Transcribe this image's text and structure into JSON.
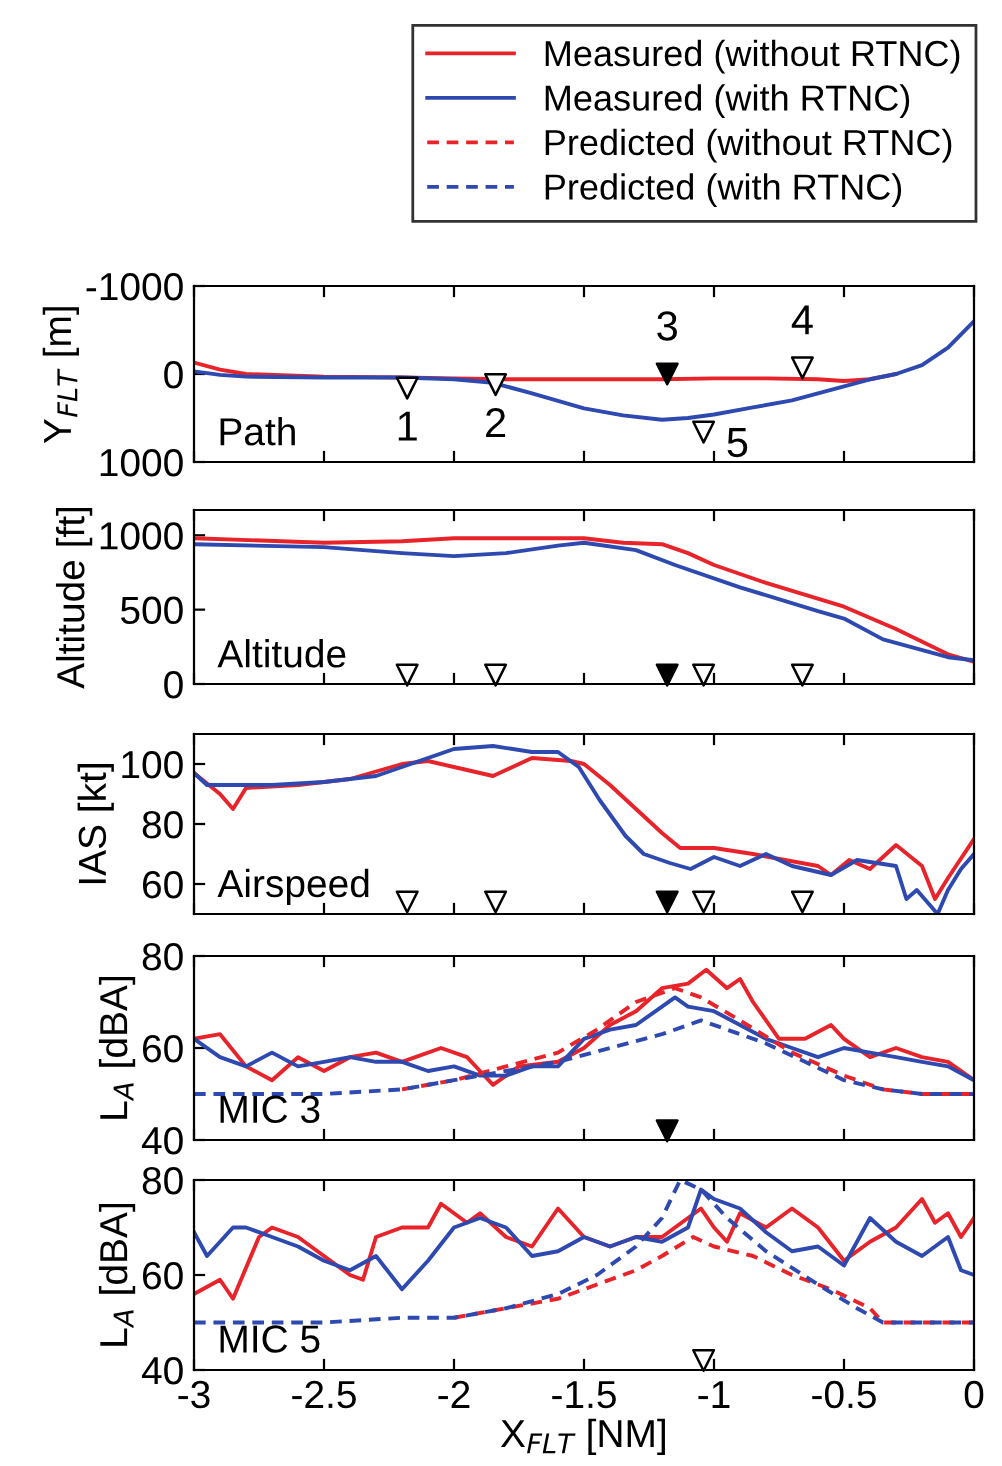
{
  "chart_data": [
    {
      "type": "line",
      "ylabel": "Y$_{FLT}$ [m]",
      "xlim": [
        -3,
        0
      ],
      "xticks": [
        -3,
        -2.5,
        -2,
        -1.5,
        -1,
        -0.5,
        0
      ],
      "ylim": [
        1000,
        -1000
      ],
      "yticks": [
        -1000,
        0,
        1000
      ],
      "tick_labels": "y",
      "grid": false,
      "annotations": [
        "Path",
        {
          "text": "1",
          "x": -2.18,
          "y": 160
        },
        {
          "text": "2",
          "x": -1.84,
          "y": 120
        },
        {
          "text": "3",
          "x": -1.18,
          "y": 0
        },
        {
          "text": "4",
          "x": -0.66,
          "y": -70
        },
        {
          "text": "5",
          "x": -1.04,
          "y": 660
        }
      ],
      "series": [
        {
          "color": "#e8232a",
          "line_style": "solid",
          "x": [
            -3,
            -2.9,
            -2.8,
            -2.5,
            -2.2,
            -2,
            -1.8,
            -1.5,
            -1.2,
            -1,
            -0.8,
            -0.6,
            -0.5,
            -0.4,
            -0.3
          ],
          "values": [
            -130,
            -50,
            0,
            30,
            40,
            50,
            60,
            60,
            60,
            50,
            50,
            60,
            80,
            60,
            0
          ]
        },
        {
          "color": "#2e49b0",
          "line_style": "solid",
          "x": [
            -3,
            -2.9,
            -2.8,
            -2.5,
            -2.2,
            -2,
            -1.85,
            -1.7,
            -1.5,
            -1.35,
            -1.2,
            -1.1,
            -1,
            -0.85,
            -0.7,
            -0.55,
            -0.4,
            -0.3,
            -0.2,
            -0.1,
            0
          ],
          "values": [
            -30,
            10,
            30,
            40,
            40,
            60,
            100,
            220,
            390,
            470,
            520,
            500,
            460,
            380,
            300,
            180,
            60,
            0,
            -100,
            -300,
            -600
          ]
        },
        {
          "type": "scatter",
          "marker": "triangle",
          "x": [
            -2.18,
            -1.84,
            -1.18,
            -0.66,
            -1.04
          ],
          "values": [
            160,
            120,
            0,
            -70,
            660
          ],
          "colors": [
            "#ffffff",
            "#ffffff",
            "#000000",
            "#ffffff",
            "#ffffff"
          ]
        }
      ]
    },
    {
      "type": "line",
      "ylabel": "Altitude [ft]",
      "xlim": [
        -3,
        0
      ],
      "xticks": [
        -3,
        -2.5,
        -2,
        -1.5,
        -1,
        -0.5,
        0
      ],
      "ylim": [
        0,
        1170
      ],
      "yticks": [
        0,
        500,
        1000
      ],
      "tick_labels": "y",
      "grid": false,
      "annotations": [
        "Altitude"
      ],
      "series": [
        {
          "color": "#e8232a",
          "line_style": "solid",
          "x": [
            -3,
            -2.5,
            -2.2,
            -2,
            -1.5,
            -1.35,
            -1.2,
            -1.1,
            -1,
            -0.8,
            -0.5,
            -0.3,
            -0.1,
            0
          ],
          "values": [
            980,
            950,
            960,
            980,
            980,
            950,
            940,
            880,
            800,
            680,
            520,
            370,
            200,
            150
          ]
        },
        {
          "color": "#2e49b0",
          "line_style": "solid",
          "x": [
            -3,
            -2.5,
            -2.2,
            -2,
            -1.8,
            -1.6,
            -1.5,
            -1.3,
            -1.15,
            -0.9,
            -0.6,
            -0.5,
            -0.35,
            -0.1,
            0
          ],
          "values": [
            940,
            920,
            880,
            860,
            880,
            930,
            950,
            900,
            800,
            650,
            490,
            440,
            300,
            180,
            160
          ]
        },
        {
          "type": "scatter",
          "marker": "triangle",
          "x": [
            -2.18,
            -1.84,
            -1.18,
            -1.04,
            -0.66
          ],
          "values": [
            60,
            60,
            60,
            60,
            60
          ],
          "colors": [
            "#ffffff",
            "#ffffff",
            "#000000",
            "#ffffff",
            "#ffffff"
          ]
        }
      ]
    },
    {
      "type": "line",
      "ylabel": "IAS [kt]",
      "xlim": [
        -3,
        0
      ],
      "xticks": [
        -3,
        -2.5,
        -2,
        -1.5,
        -1,
        -0.5,
        0
      ],
      "ylim": [
        50,
        110
      ],
      "yticks": [
        60,
        80,
        100
      ],
      "tick_labels": "y",
      "grid": false,
      "annotations": [
        "Airspeed"
      ],
      "series": [
        {
          "color": "#e8232a",
          "line_style": "solid",
          "x": [
            -3,
            -2.9,
            -2.85,
            -2.8,
            -2.6,
            -2.4,
            -2.2,
            -2.1,
            -1.95,
            -1.85,
            -1.7,
            -1.55,
            -1.5,
            -1.4,
            -1.3,
            -1.2,
            -1.13,
            -1,
            -0.85,
            -0.6,
            -0.55,
            -0.48,
            -0.4,
            -0.3,
            -0.2,
            -0.15,
            -0.1,
            0
          ],
          "values": [
            97,
            90,
            85,
            92,
            93,
            95,
            100,
            101,
            98,
            96,
            102,
            101,
            100,
            93,
            85,
            77,
            72,
            72,
            70,
            66,
            63,
            68,
            65,
            73,
            66,
            55,
            62,
            75
          ]
        },
        {
          "color": "#2e49b0",
          "line_style": "solid",
          "x": [
            -3,
            -2.95,
            -2.7,
            -2.5,
            -2.3,
            -2.2,
            -2,
            -1.85,
            -1.7,
            -1.6,
            -1.52,
            -1.44,
            -1.34,
            -1.27,
            -1.17,
            -1.09,
            -1,
            -0.9,
            -0.8,
            -0.7,
            -0.55,
            -0.45,
            -0.3,
            -0.26,
            -0.22,
            -0.14,
            -0.1,
            -0.05,
            0
          ],
          "values": [
            97,
            93,
            93,
            94,
            96,
            99,
            105,
            106,
            104,
            104,
            99,
            88,
            76,
            70,
            67,
            65,
            69,
            66,
            70,
            66,
            63,
            68,
            66,
            55,
            58,
            50,
            58,
            65,
            70
          ]
        },
        {
          "type": "scatter",
          "marker": "triangle",
          "x": [
            -2.18,
            -1.84,
            -1.18,
            -1.04,
            -0.66
          ],
          "values": [
            54,
            54,
            54,
            54,
            54
          ],
          "colors": [
            "#ffffff",
            "#ffffff",
            "#000000",
            "#ffffff",
            "#ffffff"
          ]
        }
      ]
    },
    {
      "type": "line",
      "ylabel": "L$_{A}$ [dBA]",
      "xlim": [
        -3,
        0
      ],
      "xticks": [
        -3,
        -2.5,
        -2,
        -1.5,
        -1,
        -0.5,
        0
      ],
      "ylim": [
        40,
        80
      ],
      "yticks": [
        40,
        60,
        80
      ],
      "tick_labels": "y",
      "grid": false,
      "legend": "top",
      "annotations": [
        "MIC 3"
      ],
      "series": [
        {
          "name": "Measured (without RTNC)",
          "color": "#e8232a",
          "line_style": "solid",
          "x": [
            -3,
            -2.9,
            -2.8,
            -2.7,
            -2.6,
            -2.5,
            -2.4,
            -2.3,
            -2.2,
            -2.05,
            -1.95,
            -1.9,
            -1.85,
            -1.75,
            -1.6,
            -1.5,
            -1.4,
            -1.3,
            -1.2,
            -1.1,
            -1.03,
            -0.95,
            -0.9,
            -0.85,
            -0.75,
            -0.65,
            -0.55,
            -0.5,
            -0.4,
            -0.3,
            -0.2,
            -0.1,
            0
          ],
          "values": [
            62,
            63,
            56,
            53,
            58,
            55,
            58,
            59,
            57,
            60,
            58,
            55,
            52,
            56,
            57,
            60,
            65,
            68,
            73,
            74,
            77,
            73,
            75,
            70,
            62,
            62,
            65,
            62,
            58,
            60,
            58,
            57,
            53
          ]
        },
        {
          "name": "Measured (with RTNC)",
          "color": "#2e49b0",
          "line_style": "solid",
          "x": [
            -3,
            -2.9,
            -2.8,
            -2.7,
            -2.6,
            -2.5,
            -2.4,
            -2.3,
            -2.2,
            -2.1,
            -2,
            -1.9,
            -1.8,
            -1.7,
            -1.6,
            -1.5,
            -1.4,
            -1.3,
            -1.2,
            -1.15,
            -1.1,
            -1,
            -0.9,
            -0.8,
            -0.7,
            -0.6,
            -0.5,
            -0.4,
            -0.3,
            -0.2,
            -0.1,
            0
          ],
          "values": [
            62,
            58,
            56,
            59,
            56,
            57,
            58,
            57,
            57,
            55,
            56,
            54,
            54,
            56,
            56,
            62,
            64,
            65,
            69,
            71,
            69,
            68,
            65,
            62,
            60,
            58,
            60,
            59,
            58,
            57,
            56,
            53
          ]
        },
        {
          "name": "Predicted (without RTNC)",
          "color": "#e8232a",
          "line_style": "dashed",
          "x": [
            -2.2,
            -2,
            -1.8,
            -1.6,
            -1.45,
            -1.3,
            -1.15,
            -1.05,
            -0.9,
            -0.7,
            -0.5,
            -0.35,
            -0.2,
            0
          ],
          "values": [
            51,
            53,
            56,
            59,
            64,
            70,
            73,
            71,
            66,
            59,
            54,
            51,
            50,
            50
          ]
        },
        {
          "name": "Predicted (with RTNC)",
          "color": "#2e49b0",
          "line_style": "dashed",
          "x": [
            -3,
            -2.5,
            -2.2,
            -2,
            -1.8,
            -1.6,
            -1.4,
            -1.2,
            -1.05,
            -0.95,
            -0.8,
            -0.65,
            -0.5,
            -0.35,
            -0.2,
            0
          ],
          "values": [
            50,
            50,
            51,
            53,
            55,
            57,
            60,
            63,
            66,
            64,
            61,
            57,
            53,
            51,
            50,
            50
          ]
        },
        {
          "type": "scatter",
          "marker": "triangle",
          "x": [
            -1.18
          ],
          "values": [
            42
          ],
          "colors": [
            "#000000"
          ]
        }
      ]
    },
    {
      "type": "line",
      "ylabel": "L$_{A}$ [dBA]",
      "xlabel": "X$_{FLT}$ [NM]",
      "xlim": [
        -3,
        0
      ],
      "xticks": [
        -3,
        -2.5,
        -2,
        -1.5,
        -1,
        -0.5,
        0
      ],
      "ylim": [
        40,
        80
      ],
      "yticks": [
        40,
        60,
        80
      ],
      "grid": false,
      "annotations": [
        "MIC 5"
      ],
      "series": [
        {
          "color": "#e8232a",
          "line_style": "solid",
          "x": [
            -3,
            -2.9,
            -2.85,
            -2.75,
            -2.7,
            -2.6,
            -2.5,
            -2.4,
            -2.35,
            -2.3,
            -2.2,
            -2.1,
            -2.05,
            -1.95,
            -1.9,
            -1.8,
            -1.7,
            -1.6,
            -1.5,
            -1.4,
            -1.3,
            -1.2,
            -1.1,
            -1.05,
            -1,
            -0.95,
            -0.9,
            -0.8,
            -0.7,
            -0.6,
            -0.5,
            -0.4,
            -0.3,
            -0.2,
            -0.15,
            -0.1,
            -0.05,
            0
          ],
          "values": [
            56,
            59,
            55,
            68,
            70,
            68,
            64,
            60,
            59,
            68,
            70,
            70,
            75,
            71,
            73,
            68,
            66,
            74,
            68,
            66,
            68,
            68,
            72,
            74,
            70,
            67,
            73,
            70,
            74,
            70,
            63,
            67,
            70,
            76,
            71,
            73,
            68,
            72
          ]
        },
        {
          "color": "#2e49b0",
          "line_style": "solid",
          "x": [
            -3,
            -2.95,
            -2.85,
            -2.8,
            -2.7,
            -2.6,
            -2.5,
            -2.4,
            -2.3,
            -2.2,
            -2.1,
            -2,
            -1.9,
            -1.8,
            -1.7,
            -1.6,
            -1.5,
            -1.4,
            -1.3,
            -1.2,
            -1.1,
            -1.05,
            -1,
            -0.9,
            -0.8,
            -0.7,
            -0.6,
            -0.5,
            -0.4,
            -0.3,
            -0.2,
            -0.1,
            -0.05,
            0
          ],
          "values": [
            69,
            64,
            70,
            70,
            68,
            66,
            63,
            61,
            64,
            57,
            63,
            70,
            72,
            70,
            64,
            65,
            68,
            66,
            68,
            67,
            70,
            78,
            76,
            74,
            69,
            65,
            66,
            62,
            72,
            67,
            64,
            68,
            61,
            60
          ]
        },
        {
          "color": "#e8232a",
          "line_style": "dashed",
          "x": [
            -2,
            -1.8,
            -1.6,
            -1.45,
            -1.3,
            -1.2,
            -1.08,
            -1,
            -0.85,
            -0.7,
            -0.55,
            -0.4,
            -0.35,
            0
          ],
          "values": [
            51,
            53,
            55,
            58,
            61,
            64,
            68,
            66,
            64,
            60,
            57,
            53,
            50,
            50
          ]
        },
        {
          "color": "#2e49b0",
          "line_style": "dashed",
          "x": [
            -3,
            -2.5,
            -2.2,
            -2,
            -1.8,
            -1.6,
            -1.45,
            -1.3,
            -1.2,
            -1.13,
            -1.05,
            -0.95,
            -0.8,
            -0.6,
            -0.45,
            -0.35,
            0
          ],
          "values": [
            50,
            50,
            51,
            51,
            53,
            56,
            60,
            66,
            72,
            80,
            78,
            72,
            65,
            58,
            53,
            50,
            50
          ]
        },
        {
          "type": "scatter",
          "marker": "triangle",
          "x": [
            -1.04
          ],
          "values": [
            42
          ],
          "colors": [
            "#ffffff"
          ]
        }
      ]
    }
  ]
}
